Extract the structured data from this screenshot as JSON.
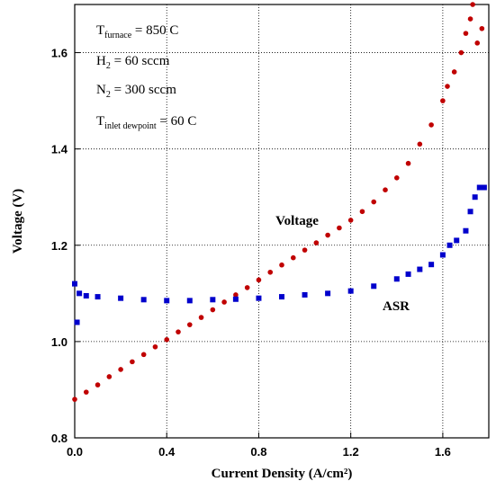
{
  "chart_data": {
    "type": "scatter",
    "xlabel": "Current Density (A/cm²)",
    "ylabel": "Voltage (V)",
    "xlim": [
      0,
      1.8
    ],
    "ylim": [
      0.8,
      1.7
    ],
    "xticks": [
      {
        "value": 0,
        "label": "0.0"
      },
      0.4,
      0.8,
      1.2,
      1.6
    ],
    "yticks": [
      0.8,
      {
        "value": 1,
        "label": "1.0"
      },
      1.2,
      1.4,
      1.6
    ],
    "grid": true,
    "annotations": [
      {
        "main": "T",
        "sub": "furnace",
        "rest": " = 850 C"
      },
      {
        "main": "H",
        "sub": "2",
        "rest": " = 60 sccm"
      },
      {
        "main": "N",
        "sub": "2",
        "rest": " = 300 sccm"
      },
      {
        "main": "T",
        "sub": "inlet dewpoint",
        "rest": " = 60 C"
      }
    ],
    "series": [
      {
        "name": "Voltage",
        "color": "#c00000",
        "marker": "circle",
        "x": [
          0,
          0.05,
          0.1,
          0.15,
          0.2,
          0.25,
          0.3,
          0.35,
          0.4,
          0.45,
          0.5,
          0.55,
          0.6,
          0.65,
          0.7,
          0.75,
          0.8,
          0.85,
          0.9,
          0.95,
          1.0,
          1.05,
          1.1,
          1.15,
          1.2,
          1.25,
          1.3,
          1.35,
          1.4,
          1.45,
          1.5,
          1.55,
          1.6,
          1.62,
          1.65,
          1.68,
          1.7,
          1.72,
          1.73,
          1.75,
          1.77
        ],
        "values": [
          0.88,
          0.895,
          0.91,
          0.927,
          0.942,
          0.958,
          0.973,
          0.989,
          1.004,
          1.02,
          1.035,
          1.05,
          1.066,
          1.082,
          1.097,
          1.112,
          1.128,
          1.144,
          1.159,
          1.174,
          1.19,
          1.205,
          1.221,
          1.236,
          1.252,
          1.27,
          1.29,
          1.315,
          1.34,
          1.37,
          1.41,
          1.45,
          1.5,
          1.53,
          1.56,
          1.6,
          1.64,
          1.67,
          1.7,
          1.62,
          1.65
        ]
      },
      {
        "name": "ASR",
        "color": "#0000cc",
        "marker": "square",
        "x": [
          0,
          0.01,
          0.02,
          0.05,
          0.1,
          0.2,
          0.3,
          0.4,
          0.5,
          0.6,
          0.7,
          0.8,
          0.9,
          1.0,
          1.1,
          1.2,
          1.3,
          1.4,
          1.45,
          1.5,
          1.55,
          1.6,
          1.63,
          1.66,
          1.7,
          1.72,
          1.74,
          1.76,
          1.78
        ],
        "values": [
          1.12,
          1.04,
          1.1,
          1.095,
          1.093,
          1.09,
          1.087,
          1.085,
          1.085,
          1.087,
          1.088,
          1.09,
          1.093,
          1.097,
          1.1,
          1.105,
          1.115,
          1.13,
          1.14,
          1.15,
          1.16,
          1.18,
          1.2,
          1.21,
          1.23,
          1.27,
          1.3,
          1.32,
          1.32
        ]
      }
    ]
  }
}
